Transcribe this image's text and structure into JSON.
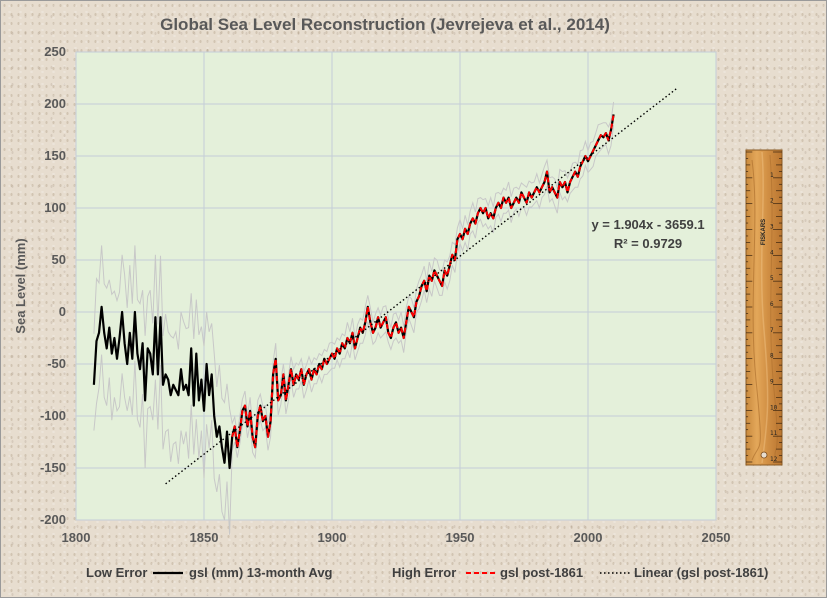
{
  "chart_data": {
    "type": "line",
    "title": "Global Sea Level Reconstruction (Jevrejeva et al., 2014)",
    "xlabel": "",
    "ylabel": "Sea Level (mm)",
    "xlim": [
      1800,
      2050
    ],
    "ylim": [
      -200,
      250
    ],
    "x_ticks": [
      "1800",
      "1850",
      "1900",
      "1950",
      "2000",
      "2050"
    ],
    "y_ticks": [
      "250",
      "200",
      "150",
      "100",
      "50",
      "0",
      "-50",
      "-100",
      "-150",
      "-200"
    ],
    "grid": true,
    "legend_position": "bottom",
    "series": [
      {
        "name": "gsl (mm) 13-month Avg",
        "color": "#000000",
        "points": [
          [
            1807,
            -70
          ],
          [
            1808,
            -28
          ],
          [
            1809,
            -20
          ],
          [
            1810,
            5
          ],
          [
            1811,
            -20
          ],
          [
            1812,
            -35
          ],
          [
            1813,
            -15
          ],
          [
            1814,
            -40
          ],
          [
            1815,
            -25
          ],
          [
            1816,
            -45
          ],
          [
            1817,
            -25
          ],
          [
            1818,
            0
          ],
          [
            1819,
            -30
          ],
          [
            1820,
            -50
          ],
          [
            1821,
            -20
          ],
          [
            1822,
            -45
          ],
          [
            1823,
            0
          ],
          [
            1824,
            -40
          ],
          [
            1825,
            -55
          ],
          [
            1826,
            -30
          ],
          [
            1827,
            -85
          ],
          [
            1828,
            -35
          ],
          [
            1829,
            -40
          ],
          [
            1830,
            -60
          ],
          [
            1831,
            -5
          ],
          [
            1832,
            -60
          ],
          [
            1833,
            -5
          ],
          [
            1834,
            -70
          ],
          [
            1835,
            -60
          ],
          [
            1836,
            -65
          ],
          [
            1837,
            -80
          ],
          [
            1838,
            -70
          ],
          [
            1839,
            -75
          ],
          [
            1840,
            -80
          ],
          [
            1841,
            -55
          ],
          [
            1842,
            -75
          ],
          [
            1843,
            -70
          ],
          [
            1844,
            -80
          ],
          [
            1845,
            -35
          ],
          [
            1846,
            -90
          ],
          [
            1847,
            -40
          ],
          [
            1848,
            -85
          ],
          [
            1849,
            -65
          ],
          [
            1850,
            -95
          ],
          [
            1851,
            -50
          ],
          [
            1852,
            -80
          ],
          [
            1853,
            -60
          ],
          [
            1854,
            -100
          ],
          [
            1855,
            -120
          ],
          [
            1856,
            -110
          ],
          [
            1857,
            -130
          ],
          [
            1858,
            -145
          ],
          [
            1859,
            -115
          ],
          [
            1860,
            -150
          ],
          [
            1861,
            -120
          ],
          [
            1862,
            -110
          ],
          [
            1863,
            -130
          ],
          [
            1864,
            -115
          ],
          [
            1865,
            -95
          ],
          [
            1866,
            -90
          ],
          [
            1867,
            -110
          ],
          [
            1868,
            -95
          ],
          [
            1869,
            -120
          ],
          [
            1870,
            -130
          ],
          [
            1871,
            -100
          ],
          [
            1872,
            -90
          ],
          [
            1873,
            -105
          ],
          [
            1874,
            -100
          ],
          [
            1875,
            -120
          ],
          [
            1876,
            -105
          ],
          [
            1877,
            -60
          ],
          [
            1878,
            -45
          ],
          [
            1879,
            -85
          ],
          [
            1880,
            -80
          ],
          [
            1881,
            -60
          ],
          [
            1882,
            -85
          ],
          [
            1883,
            -70
          ],
          [
            1884,
            -55
          ],
          [
            1885,
            -70
          ],
          [
            1886,
            -60
          ],
          [
            1887,
            -65
          ],
          [
            1888,
            -55
          ],
          [
            1889,
            -70
          ],
          [
            1890,
            -60
          ],
          [
            1891,
            -55
          ],
          [
            1892,
            -65
          ],
          [
            1893,
            -55
          ],
          [
            1894,
            -60
          ],
          [
            1895,
            -50
          ],
          [
            1896,
            -55
          ],
          [
            1897,
            -45
          ],
          [
            1898,
            -50
          ],
          [
            1899,
            -45
          ],
          [
            1900,
            -40
          ],
          [
            1901,
            -45
          ],
          [
            1902,
            -35
          ],
          [
            1903,
            -40
          ],
          [
            1904,
            -30
          ],
          [
            1905,
            -35
          ],
          [
            1906,
            -25
          ],
          [
            1907,
            -30
          ],
          [
            1908,
            -20
          ],
          [
            1909,
            -35
          ],
          [
            1910,
            -25
          ],
          [
            1911,
            -15
          ],
          [
            1912,
            -20
          ],
          [
            1913,
            -10
          ],
          [
            1914,
            5
          ],
          [
            1915,
            -10
          ],
          [
            1916,
            -20
          ],
          [
            1917,
            -15
          ],
          [
            1918,
            -5
          ],
          [
            1919,
            -15
          ],
          [
            1920,
            -10
          ],
          [
            1921,
            -5
          ],
          [
            1922,
            -20
          ],
          [
            1923,
            -25
          ],
          [
            1924,
            -15
          ],
          [
            1925,
            -10
          ],
          [
            1926,
            -20
          ],
          [
            1927,
            -15
          ],
          [
            1928,
            -25
          ],
          [
            1929,
            -10
          ],
          [
            1930,
            5
          ],
          [
            1931,
            0
          ],
          [
            1932,
            -5
          ],
          [
            1933,
            10
          ],
          [
            1934,
            15
          ],
          [
            1935,
            25
          ],
          [
            1936,
            30
          ],
          [
            1937,
            20
          ],
          [
            1938,
            35
          ],
          [
            1939,
            30
          ],
          [
            1940,
            40
          ],
          [
            1941,
            35
          ],
          [
            1942,
            30
          ],
          [
            1943,
            25
          ],
          [
            1944,
            40
          ],
          [
            1945,
            35
          ],
          [
            1946,
            45
          ],
          [
            1947,
            55
          ],
          [
            1948,
            50
          ],
          [
            1949,
            70
          ],
          [
            1950,
            75
          ],
          [
            1951,
            70
          ],
          [
            1952,
            80
          ],
          [
            1953,
            75
          ],
          [
            1954,
            85
          ],
          [
            1955,
            90
          ],
          [
            1956,
            85
          ],
          [
            1957,
            95
          ],
          [
            1958,
            100
          ],
          [
            1959,
            95
          ],
          [
            1960,
            100
          ],
          [
            1961,
            90
          ],
          [
            1962,
            95
          ],
          [
            1963,
            90
          ],
          [
            1964,
            100
          ],
          [
            1965,
            105
          ],
          [
            1966,
            100
          ],
          [
            1967,
            110
          ],
          [
            1968,
            105
          ],
          [
            1969,
            110
          ],
          [
            1970,
            100
          ],
          [
            1971,
            105
          ],
          [
            1972,
            110
          ],
          [
            1973,
            105
          ],
          [
            1974,
            115
          ],
          [
            1975,
            110
          ],
          [
            1976,
            105
          ],
          [
            1977,
            115
          ],
          [
            1978,
            110
          ],
          [
            1979,
            115
          ],
          [
            1980,
            120
          ],
          [
            1981,
            115
          ],
          [
            1982,
            120
          ],
          [
            1983,
            125
          ],
          [
            1984,
            135
          ],
          [
            1985,
            115
          ],
          [
            1986,
            120
          ],
          [
            1987,
            115
          ],
          [
            1988,
            110
          ],
          [
            1989,
            125
          ],
          [
            1990,
            120
          ],
          [
            1991,
            125
          ],
          [
            1992,
            115
          ],
          [
            1993,
            125
          ],
          [
            1994,
            130
          ],
          [
            1995,
            135
          ],
          [
            1996,
            130
          ],
          [
            1997,
            140
          ],
          [
            1998,
            145
          ],
          [
            1999,
            150
          ],
          [
            2000,
            145
          ],
          [
            2001,
            150
          ],
          [
            2002,
            155
          ],
          [
            2003,
            160
          ],
          [
            2004,
            165
          ],
          [
            2005,
            170
          ],
          [
            2006,
            168
          ],
          [
            2007,
            172
          ],
          [
            2008,
            165
          ],
          [
            2009,
            175
          ],
          [
            2010,
            190
          ]
        ]
      },
      {
        "name": "gsl post-1861",
        "color": "#ff0000",
        "start": 1861
      },
      {
        "name": "Low Error",
        "color": "#c8c8c8"
      },
      {
        "name": "High Error",
        "color": "#c8c8c8"
      },
      {
        "name": "Linear (gsl post-1861)",
        "color": "#000000",
        "slope": 1.904,
        "intercept": -3659.1,
        "x_range": [
          1835,
          2035
        ]
      }
    ],
    "annotations": {
      "equation": "y = 1.904x - 3659.1",
      "r_squared": "R² = 0.9729"
    },
    "legend": [
      {
        "label": "Low Error",
        "color": "#c8c8c8",
        "style": "solid"
      },
      {
        "label": "gsl (mm) 13-month Avg",
        "color": "#000000",
        "style": "solid"
      },
      {
        "label": "High Error",
        "color": "#c8c8c8",
        "style": "solid"
      },
      {
        "label": "gsl post-1861",
        "color": "#ff0000",
        "style": "dashed"
      },
      {
        "label": "Linear (gsl post-1861)",
        "color": "#000000",
        "style": "dotted"
      }
    ]
  },
  "ruler": {
    "brand": "FISKARS",
    "tick_labels": [
      "1",
      "2",
      "3",
      "4",
      "5",
      "6",
      "7",
      "8",
      "9",
      "10",
      "11",
      "12"
    ]
  }
}
